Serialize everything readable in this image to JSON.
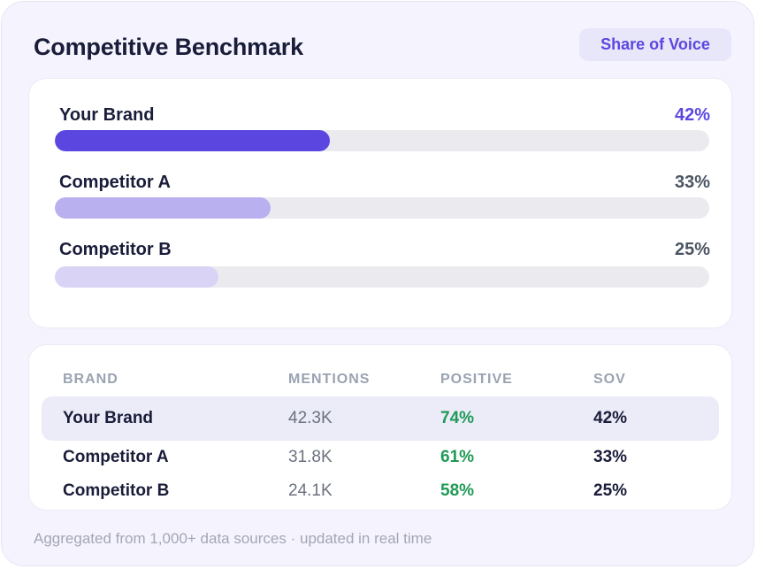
{
  "header": {
    "title": "Competitive Benchmark",
    "badge": "Share of Voice"
  },
  "share_of_voice": [
    {
      "label": "Your Brand",
      "value_text": "42%",
      "value": 42,
      "fill_color": "#5b47e0",
      "value_color": "#5b47e0"
    },
    {
      "label": "Competitor A",
      "value_text": "33%",
      "value": 33,
      "fill_color": "#b8b0ef",
      "value_color": "#4b5563"
    },
    {
      "label": "Competitor B",
      "value_text": "25%",
      "value": 25,
      "fill_color": "#d9d4f6",
      "value_color": "#4b5563"
    }
  ],
  "table": {
    "headers": {
      "brand": "BRAND",
      "mentions": "MENTIONS",
      "positive": "POSITIVE",
      "sov": "SOV"
    },
    "rows": [
      {
        "brand": "Your Brand",
        "mentions": "42.3K",
        "positive": "74%",
        "sov": "42%"
      },
      {
        "brand": "Competitor A",
        "mentions": "31.8K",
        "positive": "61%",
        "sov": "33%"
      },
      {
        "brand": "Competitor B",
        "mentions": "24.1K",
        "positive": "58%",
        "sov": "25%"
      }
    ]
  },
  "footer": "Aggregated from 1,000+ data sources · updated in real time"
}
